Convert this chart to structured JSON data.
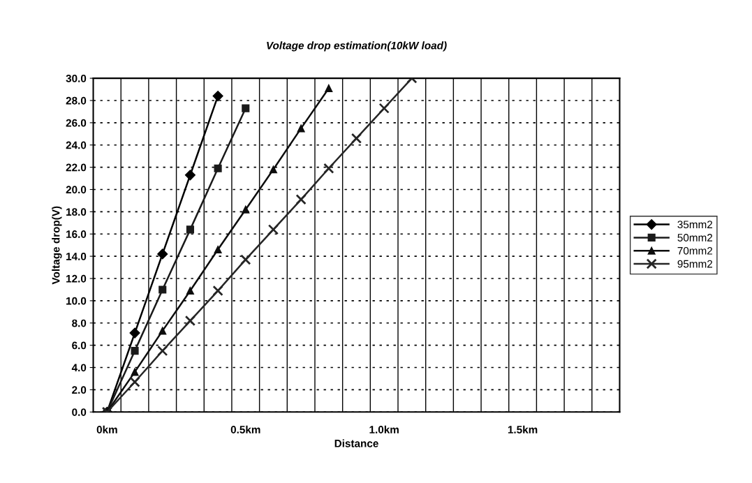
{
  "chart_data": {
    "type": "line",
    "title": "Voltage drop estimation(10kW load)",
    "xlabel": "Distance",
    "ylabel": "Voltage drop(V)",
    "categories": [
      "0km",
      null,
      null,
      null,
      null,
      "0.5km",
      null,
      null,
      null,
      null,
      "1.0km",
      null,
      null,
      null,
      null,
      "1.5km",
      null,
      null,
      null
    ],
    "series": [
      {
        "name": "35mm2",
        "color": "#000000",
        "marker": "diamond",
        "values": [
          0,
          7.1,
          14.2,
          21.3,
          28.4,
          null,
          null,
          null,
          null,
          null,
          null,
          null,
          null,
          null,
          null,
          null,
          null,
          null,
          null
        ]
      },
      {
        "name": "50mm2",
        "color": "#1a1a1a",
        "marker": "square",
        "values": [
          0,
          5.5,
          11.0,
          16.4,
          21.9,
          27.3,
          null,
          null,
          null,
          null,
          null,
          null,
          null,
          null,
          null,
          null,
          null,
          null,
          null
        ]
      },
      {
        "name": "70mm2",
        "color": "#0d0d0d",
        "marker": "triangle",
        "values": [
          0,
          3.6,
          7.3,
          10.9,
          14.6,
          18.2,
          21.8,
          25.5,
          29.1,
          null,
          null,
          null,
          null,
          null,
          null,
          null,
          null,
          null,
          null
        ]
      },
      {
        "name": "95mm2",
        "color": "#262626",
        "marker": "cross",
        "values": [
          0,
          2.7,
          5.5,
          8.2,
          10.9,
          13.7,
          16.4,
          19.1,
          21.9,
          24.6,
          27.3,
          30.0,
          null,
          null,
          null,
          null,
          null,
          null,
          null
        ]
      }
    ],
    "ylim": [
      0,
      30
    ],
    "yticks": [
      {
        "value": 0,
        "label": "0.0"
      },
      {
        "value": 2,
        "label": "2.0"
      },
      {
        "value": 4,
        "label": "4.0"
      },
      {
        "value": 6,
        "label": "6.0"
      },
      {
        "value": 8,
        "label": "8.0"
      },
      {
        "value": 10,
        "label": "10.0"
      },
      {
        "value": 12,
        "label": "12.0"
      },
      {
        "value": 14,
        "label": "14.0"
      },
      {
        "value": 16,
        "label": "16.0"
      },
      {
        "value": 18,
        "label": "18.0"
      },
      {
        "value": 20,
        "label": "20.0"
      },
      {
        "value": 22,
        "label": "22.0"
      },
      {
        "value": 24,
        "label": "24.0"
      },
      {
        "value": 26,
        "label": "26.0"
      },
      {
        "value": 28,
        "label": "28.0"
      },
      {
        "value": 30,
        "label": "30.0"
      }
    ],
    "grid": true,
    "legend": "right",
    "line_style": "solid"
  }
}
